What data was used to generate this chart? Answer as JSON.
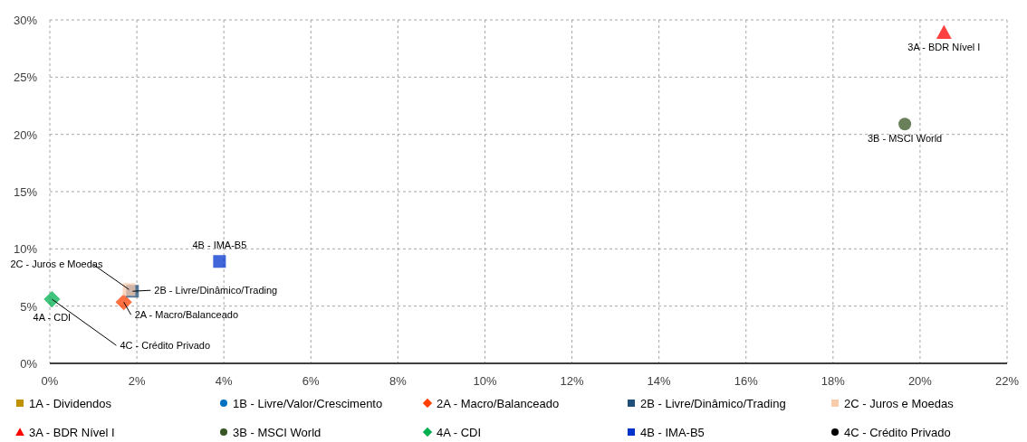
{
  "chart_data": {
    "type": "scatter",
    "xlim": [
      0,
      22
    ],
    "ylim": [
      0,
      30
    ],
    "xticks": [
      {
        "value": 0,
        "label": "0%"
      },
      {
        "value": 2,
        "label": "2%"
      },
      {
        "value": 4,
        "label": "4%"
      },
      {
        "value": 6,
        "label": "6%"
      },
      {
        "value": 8,
        "label": "8%"
      },
      {
        "value": 10,
        "label": "10%"
      },
      {
        "value": 12,
        "label": "12%"
      },
      {
        "value": 14,
        "label": "14%"
      },
      {
        "value": 16,
        "label": "16%"
      },
      {
        "value": 18,
        "label": "18%"
      },
      {
        "value": 20,
        "label": "20%"
      },
      {
        "value": 22,
        "label": "22%"
      }
    ],
    "yticks": [
      {
        "value": 0,
        "label": "0%"
      },
      {
        "value": 5,
        "label": "5%"
      },
      {
        "value": 10,
        "label": "10%"
      },
      {
        "value": 15,
        "label": "15%"
      },
      {
        "value": 20,
        "label": "20%"
      },
      {
        "value": 25,
        "label": "25%"
      },
      {
        "value": 30,
        "label": "30%"
      }
    ],
    "grid": true,
    "legend": "bottom",
    "series": [
      {
        "name": "1A - Dividendos",
        "color": "#bf9000",
        "marker": "square",
        "x": [
          null
        ],
        "values": [
          null
        ]
      },
      {
        "name": "1B - Livre/Valor/Crescimento",
        "color": "#0070c0",
        "marker": "circle",
        "x": [
          null
        ],
        "values": [
          null
        ]
      },
      {
        "name": "2A - Macro/Balanceado",
        "color": "#ff4000",
        "marker": "diamond",
        "x": [
          1.7
        ],
        "values": [
          5.35
        ]
      },
      {
        "name": "2B - Livre/Dinâmico/Trading",
        "color": "#1f4e79",
        "marker": "square",
        "x": [
          1.9
        ],
        "values": [
          6.3
        ]
      },
      {
        "name": "2C - Juros e Moedas",
        "color": "#f8cbad",
        "marker": "square",
        "x": [
          1.82
        ],
        "values": [
          6.45
        ]
      },
      {
        "name": "3A - BDR Nível I",
        "color": "#ff0000",
        "marker": "triangle",
        "x": [
          20.55
        ],
        "values": [
          28.9
        ]
      },
      {
        "name": "3B - MSCI World",
        "color": "#375623",
        "marker": "circle",
        "x": [
          19.65
        ],
        "values": [
          20.9
        ]
      },
      {
        "name": "4A - CDI",
        "color": "#00b050",
        "marker": "diamond",
        "x": [
          0.05
        ],
        "values": [
          5.6
        ]
      },
      {
        "name": "4B - IMA-B5",
        "color": "#0033cc",
        "marker": "square",
        "x": [
          3.9
        ],
        "values": [
          8.9
        ]
      },
      {
        "name": "4C - Crédito Privado",
        "color": "#000000",
        "marker": "circle",
        "x": [
          null
        ],
        "values": [
          null
        ]
      }
    ],
    "annotations": [
      {
        "text": "2A - Macro/Balanceado",
        "x": 1.7,
        "y": 5.35
      },
      {
        "text": "2B - Livre/Dinâmico/Trading",
        "x": 1.9,
        "y": 6.3
      },
      {
        "text": "2C - Juros e Moedas",
        "x": 1.82,
        "y": 6.45
      },
      {
        "text": "3A - BDR Nível I",
        "x": 20.55,
        "y": 28.9
      },
      {
        "text": "3B - MSCI World",
        "x": 19.65,
        "y": 20.9
      },
      {
        "text": "4A - CDI",
        "x": 0.05,
        "y": 5.6
      },
      {
        "text": "4B - IMA-B5",
        "x": 3.9,
        "y": 8.9
      },
      {
        "text": "4C - Crédito Privado",
        "x": 0.05,
        "y": 5.6
      }
    ]
  }
}
